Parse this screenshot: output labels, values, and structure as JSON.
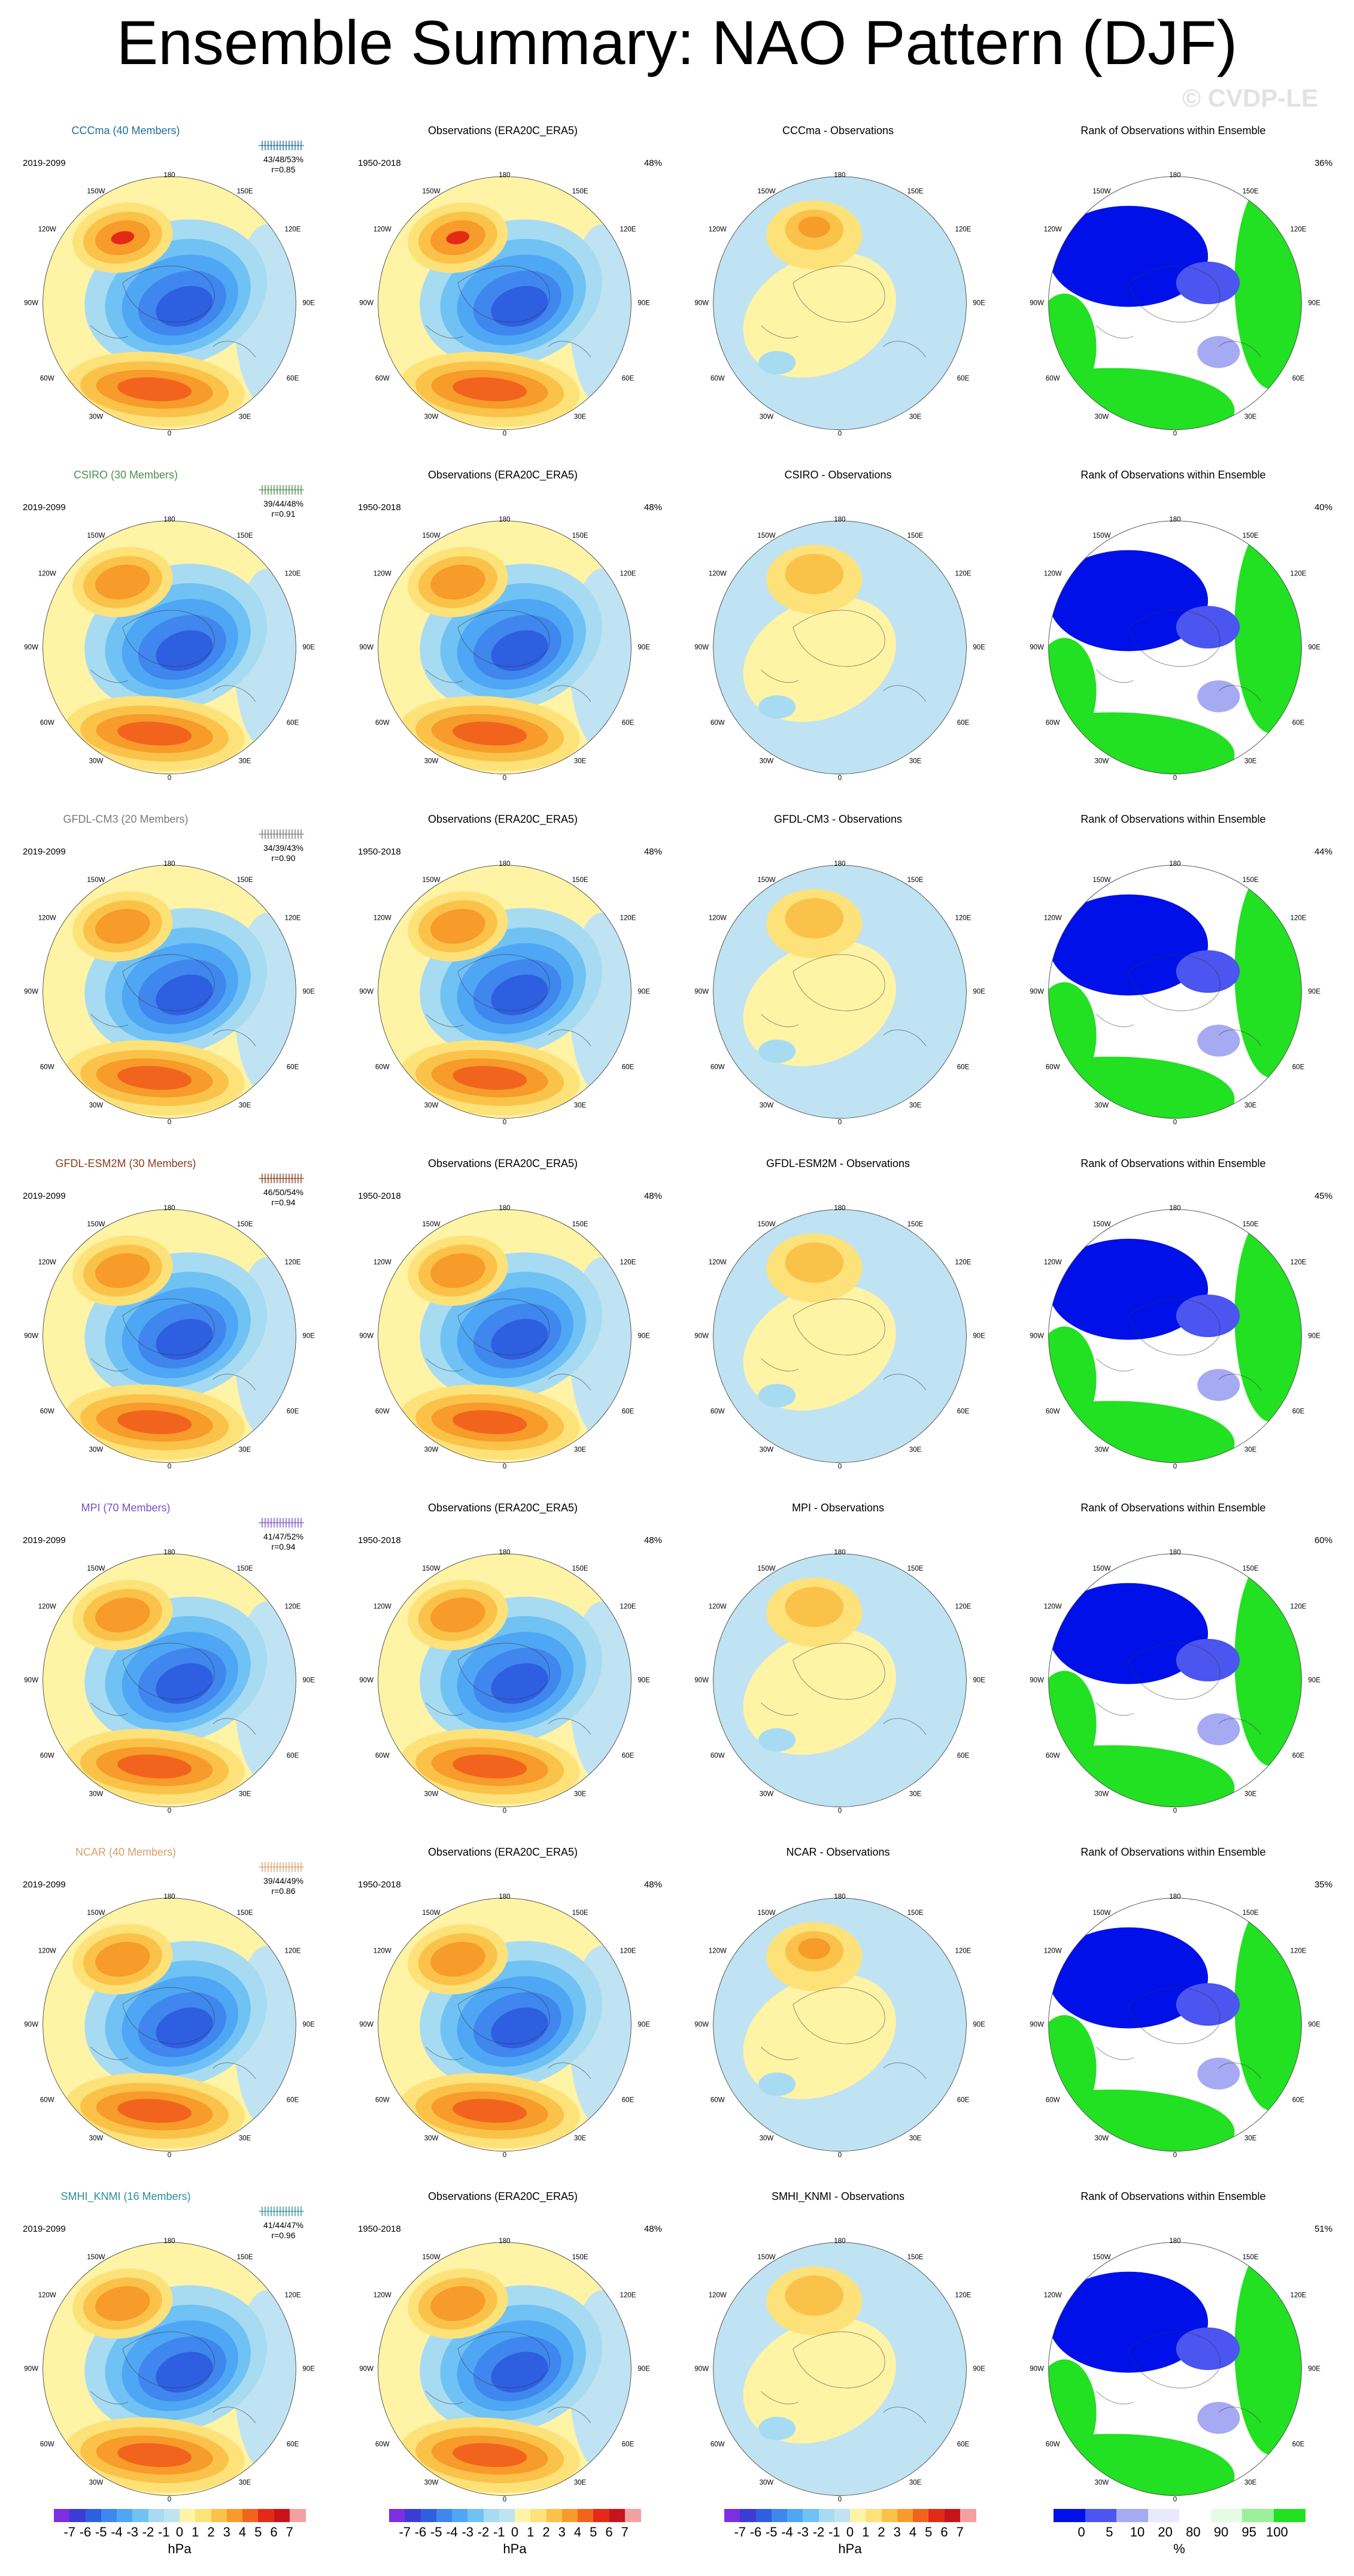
{
  "title": "Ensemble Summary: NAO Pattern (DJF)",
  "watermark": "© CVDP-LE",
  "obs_title": "Observations (ERA20C_ERA5)",
  "rank_title": "Rank of Observations within Ensemble",
  "model_period": "2019-2099",
  "obs_period": "1950-2018",
  "obs_pct": "48%",
  "map_labels": {
    "top": "180",
    "bottom": "0",
    "left": "90W",
    "right": "90E",
    "ul": "150W",
    "ur": "150E",
    "l1": "120W",
    "r1": "120E",
    "l2": "60W",
    "r2": "60E",
    "bl": "30W",
    "br": "30E"
  },
  "rows": [
    {
      "model_title": "CCCma (40 Members)",
      "color": "#1f6f9e",
      "stats": "43/48/53%",
      "r": "r=0.85",
      "diff_title": "CCCma - Observations",
      "rank_pct": "36%",
      "style": "a"
    },
    {
      "model_title": "CSIRO (30 Members)",
      "color": "#4e8f52",
      "stats": "39/44/48%",
      "r": "r=0.91",
      "diff_title": "CSIRO - Observations",
      "rank_pct": "40%",
      "style": "b"
    },
    {
      "model_title": "GFDL-CM3 (20 Members)",
      "color": "#7a7a7a",
      "stats": "34/39/43%",
      "r": "r=0.90",
      "diff_title": "GFDL-CM3 - Observations",
      "rank_pct": "44%",
      "style": "c"
    },
    {
      "model_title": "GFDL-ESM2M (30 Members)",
      "color": "#8b3d1c",
      "stats": "46/50/54%",
      "r": "r=0.94",
      "diff_title": "GFDL-ESM2M - Observations",
      "rank_pct": "45%",
      "style": "d"
    },
    {
      "model_title": "MPI (70 Members)",
      "color": "#7b4fc9",
      "stats": "41/47/52%",
      "r": "r=0.94",
      "diff_title": "MPI - Observations",
      "rank_pct": "60%",
      "style": "e"
    },
    {
      "model_title": "NCAR (40 Members)",
      "color": "#d7a06b",
      "stats": "39/44/49%",
      "r": "r=0.86",
      "diff_title": "NCAR - Observations",
      "rank_pct": "35%",
      "style": "f"
    },
    {
      "model_title": "SMHI_KNMI (16 Members)",
      "color": "#2f8e9c",
      "stats": "41/44/47%",
      "r": "r=0.96",
      "diff_title": "SMHI_KNMI - Observations",
      "rank_pct": "51%",
      "style": "g"
    }
  ],
  "colorbar": {
    "ticks": [
      "-7",
      "-6",
      "-5",
      "-4",
      "-3",
      "-2",
      "-1",
      "0",
      "1",
      "2",
      "3",
      "4",
      "5",
      "6",
      "7"
    ],
    "colors": [
      "#7b2fe0",
      "#3b3cd6",
      "#2e5fe0",
      "#3f86ee",
      "#4fa6f4",
      "#70c2f4",
      "#a7dbf2",
      "#bfe3f2",
      "#fff3a6",
      "#fde27a",
      "#fbc24a",
      "#f79b2a",
      "#f2641e",
      "#e42a16",
      "#c8131a",
      "#f5a0a0"
    ],
    "unit": "hPa"
  },
  "rank_colorbar": {
    "ticks": [
      "0",
      "5",
      "10",
      "20",
      "80",
      "90",
      "95",
      "100"
    ],
    "colors": [
      "#0010e8",
      "#4b55f0",
      "#a5aaf2",
      "#e8e9fa",
      "#ffffff",
      "#e4fbe4",
      "#99f099",
      "#22e022"
    ],
    "unit": "%"
  }
}
